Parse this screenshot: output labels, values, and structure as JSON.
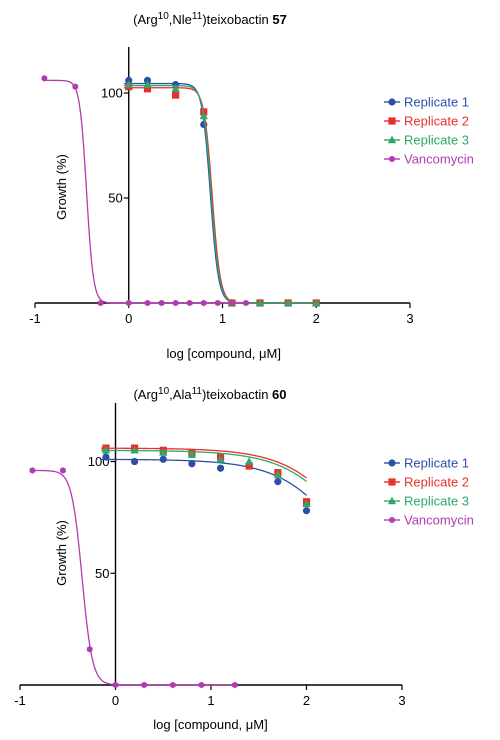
{
  "chart_data": [
    {
      "type": "line",
      "title": {
        "prefix": "(Arg",
        "sup1": "10",
        "mid": ",Nle",
        "sup2": "11",
        "suffix": ")teixobactin ",
        "number": "57"
      },
      "xlabel": "log [compound, μM]",
      "ylabel": "Growth (%)",
      "xlim": [
        -1,
        3
      ],
      "ylim": [
        0,
        110
      ],
      "xticks": [
        "-1",
        "0",
        "1",
        "2",
        "3"
      ],
      "yticks": [
        "50",
        "100"
      ],
      "grid": false,
      "legend_position": "right",
      "series": [
        {
          "name": "Replicate 1",
          "color": "#2c4fa8",
          "marker": "circle",
          "points": [
            [
              0,
              106
            ],
            [
              0.2,
              106
            ],
            [
              0.5,
              104
            ],
            [
              0.8,
              85
            ],
            [
              1.1,
              0
            ],
            [
              1.4,
              0
            ],
            [
              1.7,
              0
            ],
            [
              2.0,
              0
            ]
          ],
          "curve": {
            "top": 104.5,
            "bottom": 0,
            "ec50": 0.87,
            "hill": -10
          }
        },
        {
          "name": "Replicate 2",
          "color": "#e8302c",
          "marker": "square",
          "points": [
            [
              0,
              103
            ],
            [
              0.2,
              102
            ],
            [
              0.5,
              99
            ],
            [
              0.8,
              91
            ],
            [
              1.1,
              0
            ],
            [
              1.4,
              0
            ],
            [
              1.7,
              0
            ],
            [
              2.0,
              0
            ]
          ],
          "curve": {
            "top": 102.5,
            "bottom": 0,
            "ec50": 0.89,
            "hill": -10
          }
        },
        {
          "name": "Replicate 3",
          "color": "#2fa86a",
          "marker": "triangle",
          "points": [
            [
              0,
              104
            ],
            [
              0.2,
              104
            ],
            [
              0.5,
              102
            ],
            [
              0.8,
              89
            ],
            [
              1.1,
              0
            ],
            [
              1.4,
              0
            ],
            [
              1.7,
              0
            ],
            [
              2.0,
              0
            ]
          ],
          "curve": {
            "top": 103.5,
            "bottom": 0,
            "ec50": 0.88,
            "hill": -10
          }
        },
        {
          "name": "Vancomycin",
          "color": "#b23bb0",
          "marker": "hexagon",
          "points": [
            [
              -0.9,
              107
            ],
            [
              -0.57,
              103
            ],
            [
              -0.3,
              0
            ],
            [
              0,
              0
            ],
            [
              0.2,
              0
            ],
            [
              0.35,
              0
            ],
            [
              0.5,
              0
            ],
            [
              0.65,
              0
            ],
            [
              0.8,
              0
            ],
            [
              0.95,
              0
            ],
            [
              1.1,
              0
            ],
            [
              1.25,
              0
            ]
          ],
          "curve": {
            "top": 106,
            "bottom": 0,
            "ec50": -0.45,
            "hill": -12,
            "from": -0.9,
            "to": 1.25
          }
        }
      ]
    },
    {
      "type": "line",
      "title": {
        "prefix": "(Arg",
        "sup1": "10",
        "mid": ",Ala",
        "sup2": "11",
        "suffix": ")teixobactin ",
        "number": "60"
      },
      "xlabel": "log [compound, μM]",
      "ylabel": "Growth (%)",
      "xlim": [
        -1,
        3
      ],
      "ylim": [
        0,
        115
      ],
      "xticks": [
        "-1",
        "0",
        "1",
        "2",
        "3"
      ],
      "yticks": [
        "50",
        "100"
      ],
      "grid": false,
      "legend_position": "right",
      "series": [
        {
          "name": "Replicate 1",
          "color": "#2c4fa8",
          "marker": "circle",
          "points": [
            [
              -0.1,
              102
            ],
            [
              0.2,
              100
            ],
            [
              0.5,
              101
            ],
            [
              0.8,
              99
            ],
            [
              1.1,
              97
            ],
            [
              1.4,
              98
            ],
            [
              1.7,
              91
            ],
            [
              2.0,
              78
            ]
          ],
          "curve": {
            "top": 101,
            "bottom": 0,
            "ec50": 2.6,
            "hill": -1.2
          }
        },
        {
          "name": "Replicate 2",
          "color": "#e8302c",
          "marker": "square",
          "points": [
            [
              -0.1,
              106
            ],
            [
              0.2,
              106
            ],
            [
              0.5,
              105
            ],
            [
              0.8,
              104
            ],
            [
              1.1,
              102
            ],
            [
              1.4,
              98
            ],
            [
              1.7,
              95
            ],
            [
              2.0,
              82
            ]
          ],
          "curve": {
            "top": 106,
            "bottom": 0,
            "ec50": 2.7,
            "hill": -1.2
          }
        },
        {
          "name": "Replicate 3",
          "color": "#2fa86a",
          "marker": "triangle",
          "points": [
            [
              -0.1,
              105
            ],
            [
              0.2,
              105
            ],
            [
              0.5,
              104
            ],
            [
              0.8,
              103
            ],
            [
              1.1,
              101
            ],
            [
              1.4,
              100
            ],
            [
              1.7,
              94
            ],
            [
              2.0,
              81
            ]
          ],
          "curve": {
            "top": 105,
            "bottom": 0,
            "ec50": 2.68,
            "hill": -1.2
          }
        },
        {
          "name": "Vancomycin",
          "color": "#b23bb0",
          "marker": "hexagon",
          "points": [
            [
              -0.87,
              96
            ],
            [
              -0.55,
              96
            ],
            [
              -0.27,
              16
            ],
            [
              0,
              0
            ],
            [
              0.3,
              0
            ],
            [
              0.6,
              0
            ],
            [
              0.9,
              0
            ],
            [
              1.25,
              0
            ]
          ],
          "curve": {
            "top": 96,
            "bottom": 0,
            "ec50": -0.35,
            "hill": -8,
            "from": -0.87,
            "to": 1.25
          }
        }
      ]
    }
  ]
}
